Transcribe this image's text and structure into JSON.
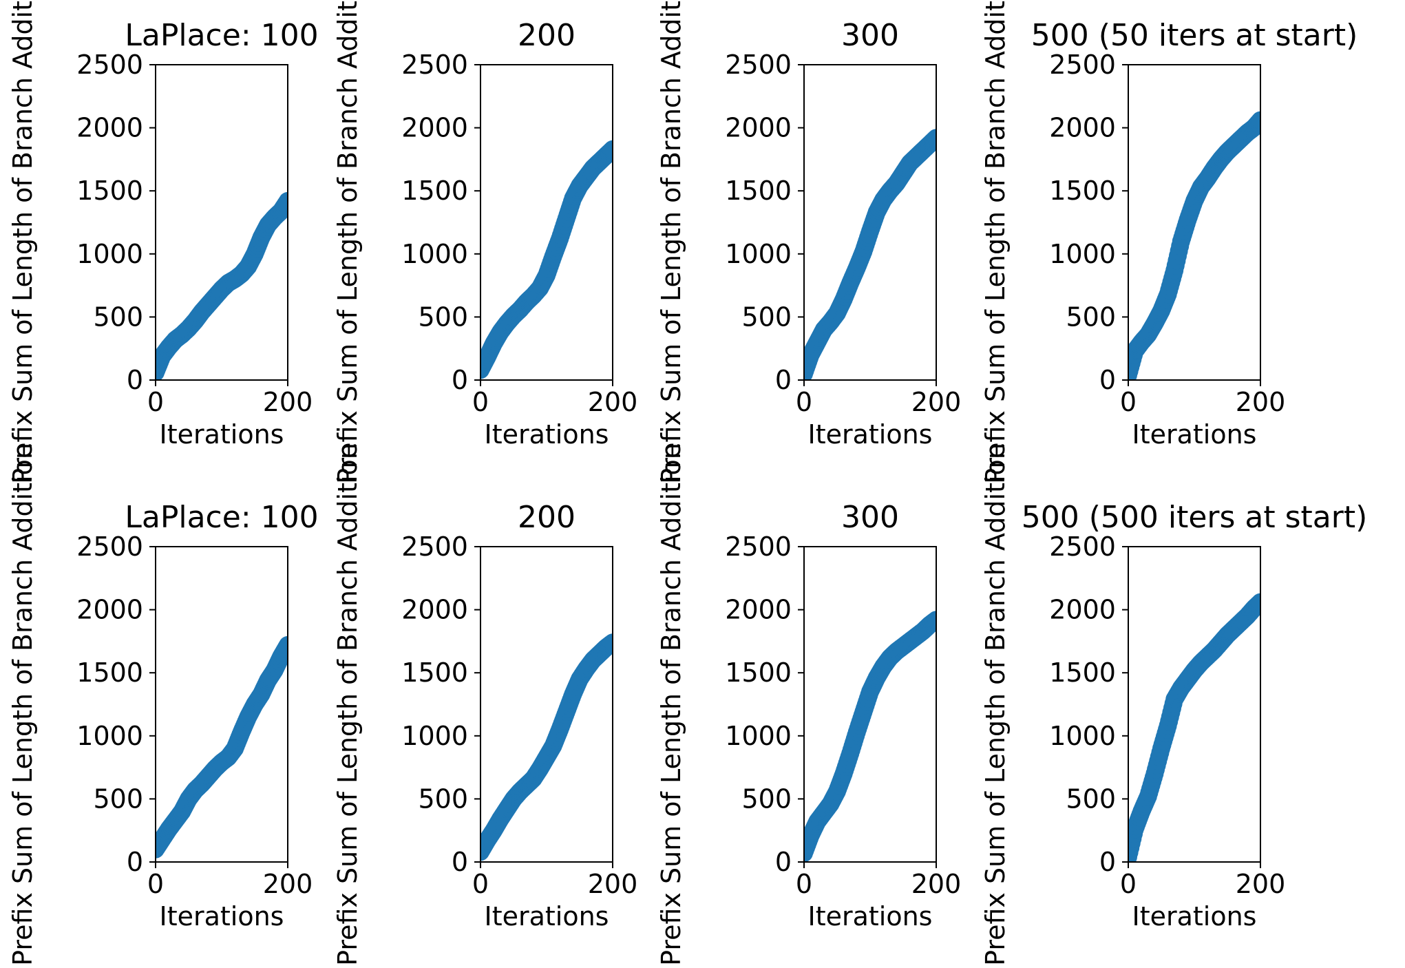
{
  "figure": {
    "rows": 2,
    "cols": 4,
    "shared": {
      "xlabel": "Iterations",
      "ylabel": "Prefix Sum of Length of Branch Addition",
      "xlim": [
        0,
        200
      ],
      "ylim": [
        0,
        2500
      ],
      "xticks": [
        "0",
        "200"
      ],
      "yticks": [
        "0",
        "500",
        "1000",
        "1500",
        "2000",
        "2500"
      ],
      "grid": false,
      "marker_color": "#1f77b4"
    }
  },
  "chart_data": [
    {
      "type": "scatter",
      "title": "LaPlace: 100",
      "xlabel": "Iterations",
      "ylabel": "Prefix Sum of Length of Branch Addition",
      "xlim": [
        0,
        200
      ],
      "ylim": [
        0,
        2500
      ],
      "grid": false,
      "series": [
        {
          "color": "#1f77b4",
          "x": [
            0,
            10,
            20,
            30,
            40,
            50,
            60,
            70,
            80,
            90,
            100,
            110,
            120,
            130,
            140,
            150,
            160,
            170,
            180,
            190,
            200
          ],
          "y": [
            60,
            190,
            260,
            320,
            360,
            410,
            470,
            540,
            600,
            660,
            720,
            770,
            800,
            840,
            900,
            1000,
            1130,
            1230,
            1290,
            1340,
            1420
          ]
        }
      ]
    },
    {
      "type": "scatter",
      "title": "200",
      "xlabel": "Iterations",
      "ylabel": "Prefix Sum of Length of Branch Addition",
      "xlim": [
        0,
        200
      ],
      "ylim": [
        0,
        2500
      ],
      "grid": false,
      "series": [
        {
          "color": "#1f77b4",
          "x": [
            0,
            10,
            20,
            30,
            40,
            50,
            60,
            70,
            80,
            90,
            100,
            110,
            120,
            130,
            140,
            150,
            160,
            170,
            180,
            190,
            200
          ],
          "y": [
            80,
            180,
            290,
            380,
            450,
            510,
            560,
            620,
            670,
            730,
            830,
            980,
            1120,
            1280,
            1440,
            1540,
            1610,
            1680,
            1730,
            1780,
            1830
          ]
        }
      ]
    },
    {
      "type": "scatter",
      "title": "300",
      "xlabel": "Iterations",
      "ylabel": "Prefix Sum of Length of Branch Addition",
      "xlim": [
        0,
        200
      ],
      "ylim": [
        0,
        2500
      ],
      "grid": false,
      "series": [
        {
          "color": "#1f77b4",
          "x": [
            0,
            10,
            20,
            30,
            40,
            50,
            60,
            70,
            80,
            90,
            100,
            110,
            120,
            130,
            140,
            150,
            160,
            170,
            180,
            190,
            200
          ],
          "y": [
            50,
            200,
            300,
            400,
            460,
            530,
            640,
            770,
            890,
            1020,
            1180,
            1330,
            1430,
            1500,
            1560,
            1640,
            1720,
            1770,
            1820,
            1870,
            1920
          ]
        }
      ]
    },
    {
      "type": "scatter",
      "title": "500 (50 iters at start)",
      "xlabel": "Iterations",
      "ylabel": "Prefix Sum of Length of Branch Addition",
      "xlim": [
        0,
        200
      ],
      "ylim": [
        0,
        2500
      ],
      "grid": false,
      "series": [
        {
          "color": "#1f77b4",
          "x": [
            0,
            10,
            20,
            30,
            40,
            50,
            60,
            70,
            80,
            90,
            100,
            110,
            120,
            130,
            140,
            150,
            160,
            170,
            180,
            190,
            200
          ],
          "y": [
            40,
            230,
            300,
            360,
            450,
            550,
            680,
            870,
            1100,
            1270,
            1420,
            1530,
            1600,
            1680,
            1750,
            1810,
            1860,
            1910,
            1960,
            2000,
            2060
          ]
        }
      ]
    },
    {
      "type": "scatter",
      "title": "LaPlace: 100",
      "xlabel": "Iterations",
      "ylabel": "Prefix Sum of Length of Branch Addition",
      "xlim": [
        0,
        200
      ],
      "ylim": [
        0,
        2500
      ],
      "grid": false,
      "series": [
        {
          "color": "#1f77b4",
          "x": [
            0,
            10,
            20,
            30,
            40,
            50,
            60,
            70,
            80,
            90,
            100,
            110,
            120,
            130,
            140,
            150,
            160,
            170,
            180,
            190,
            200
          ],
          "y": [
            100,
            180,
            260,
            330,
            400,
            500,
            570,
            620,
            680,
            740,
            790,
            830,
            900,
            1030,
            1150,
            1250,
            1330,
            1440,
            1520,
            1630,
            1720
          ]
        }
      ]
    },
    {
      "type": "scatter",
      "title": "200",
      "xlabel": "Iterations",
      "ylabel": "Prefix Sum of Length of Branch Addition",
      "xlim": [
        0,
        200
      ],
      "ylim": [
        0,
        2500
      ],
      "grid": false,
      "series": [
        {
          "color": "#1f77b4",
          "x": [
            0,
            10,
            20,
            30,
            40,
            50,
            60,
            70,
            80,
            90,
            100,
            110,
            120,
            130,
            140,
            150,
            160,
            170,
            180,
            190,
            200
          ],
          "y": [
            80,
            170,
            250,
            340,
            420,
            500,
            560,
            610,
            660,
            740,
            830,
            920,
            1050,
            1190,
            1330,
            1450,
            1530,
            1600,
            1650,
            1700,
            1740
          ]
        }
      ]
    },
    {
      "type": "scatter",
      "title": "300",
      "xlabel": "Iterations",
      "ylabel": "Prefix Sum of Length of Branch Addition",
      "xlim": [
        0,
        200
      ],
      "ylim": [
        0,
        2500
      ],
      "grid": false,
      "series": [
        {
          "color": "#1f77b4",
          "x": [
            0,
            10,
            20,
            30,
            40,
            50,
            60,
            70,
            80,
            90,
            100,
            110,
            120,
            130,
            140,
            150,
            160,
            170,
            180,
            190,
            200
          ],
          "y": [
            70,
            210,
            320,
            390,
            460,
            560,
            700,
            860,
            1030,
            1190,
            1350,
            1460,
            1550,
            1620,
            1670,
            1710,
            1750,
            1790,
            1830,
            1880,
            1920
          ]
        }
      ]
    },
    {
      "type": "scatter",
      "title": "500 (500 iters at start)",
      "xlabel": "Iterations",
      "ylabel": "Prefix Sum of Length of Branch Addition",
      "xlim": [
        0,
        200
      ],
      "ylim": [
        0,
        2500
      ],
      "grid": false,
      "series": [
        {
          "color": "#1f77b4",
          "x": [
            0,
            10,
            20,
            30,
            40,
            50,
            60,
            70,
            80,
            90,
            100,
            110,
            120,
            130,
            140,
            150,
            160,
            170,
            180,
            190,
            200
          ],
          "y": [
            40,
            260,
            400,
            520,
            700,
            900,
            1080,
            1290,
            1380,
            1450,
            1520,
            1580,
            1630,
            1680,
            1740,
            1800,
            1850,
            1900,
            1950,
            2010,
            2060
          ]
        }
      ]
    }
  ]
}
